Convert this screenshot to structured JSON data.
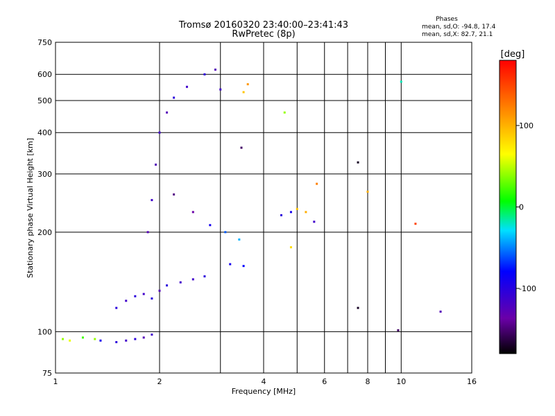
{
  "chart_data": {
    "type": "scatter",
    "title": "Tromsø 20160320 23:40:00–23:41:43",
    "subtitle": "RwPretec (8p)",
    "phase_stats": {
      "title": "Phases",
      "line_o": "mean, sd,O: -94.8, 17.4",
      "line_x": "mean, sd,X:  82.7, 21.1"
    },
    "xlabel": "Frequency [MHz]",
    "ylabel": "Stationary phase Virtual Height [km]",
    "xscale": "log",
    "yscale": "log",
    "xlim": [
      1,
      16
    ],
    "ylim": [
      75,
      750
    ],
    "xticks": [
      1,
      2,
      4,
      6,
      8,
      10,
      16
    ],
    "yticks": [
      75,
      100,
      200,
      300,
      400,
      500,
      600,
      750
    ],
    "xminor": [
      3,
      5,
      7,
      9
    ],
    "grid": true,
    "colorbar": {
      "label": "[deg]",
      "range": [
        -180,
        180
      ],
      "ticks": [
        100,
        0,
        -100
      ]
    },
    "series": [
      {
        "values": [
          {
            "x": 1.05,
            "y": 95,
            "p": 40
          },
          {
            "x": 1.1,
            "y": 94,
            "p": 60
          },
          {
            "x": 1.2,
            "y": 96,
            "p": 20
          },
          {
            "x": 1.3,
            "y": 95,
            "p": 40
          },
          {
            "x": 1.35,
            "y": 94,
            "p": -90
          },
          {
            "x": 1.5,
            "y": 93,
            "p": -100
          },
          {
            "x": 1.6,
            "y": 94,
            "p": -110
          },
          {
            "x": 1.7,
            "y": 95,
            "p": -100
          },
          {
            "x": 1.8,
            "y": 96,
            "p": -120
          },
          {
            "x": 1.9,
            "y": 98,
            "p": -110
          },
          {
            "x": 1.5,
            "y": 118,
            "p": -100
          },
          {
            "x": 1.6,
            "y": 124,
            "p": -110
          },
          {
            "x": 1.7,
            "y": 128,
            "p": -100
          },
          {
            "x": 1.8,
            "y": 130,
            "p": -110
          },
          {
            "x": 1.9,
            "y": 126,
            "p": -100
          },
          {
            "x": 2.0,
            "y": 133,
            "p": -120
          },
          {
            "x": 2.1,
            "y": 138,
            "p": -100
          },
          {
            "x": 2.3,
            "y": 141,
            "p": -110
          },
          {
            "x": 2.5,
            "y": 144,
            "p": -110
          },
          {
            "x": 2.7,
            "y": 147,
            "p": -100
          },
          {
            "x": 1.85,
            "y": 200,
            "p": -120
          },
          {
            "x": 1.9,
            "y": 250,
            "p": -110
          },
          {
            "x": 1.95,
            "y": 320,
            "p": -120
          },
          {
            "x": 2.0,
            "y": 400,
            "p": -110
          },
          {
            "x": 2.1,
            "y": 460,
            "p": -120
          },
          {
            "x": 2.2,
            "y": 510,
            "p": -100
          },
          {
            "x": 2.4,
            "y": 550,
            "p": -110
          },
          {
            "x": 2.7,
            "y": 600,
            "p": -100
          },
          {
            "x": 2.9,
            "y": 620,
            "p": -120
          },
          {
            "x": 3.0,
            "y": 540,
            "p": -110
          },
          {
            "x": 2.2,
            "y": 260,
            "p": -140
          },
          {
            "x": 2.5,
            "y": 230,
            "p": -130
          },
          {
            "x": 2.8,
            "y": 210,
            "p": -90
          },
          {
            "x": 3.1,
            "y": 200,
            "p": -60
          },
          {
            "x": 3.4,
            "y": 190,
            "p": -40
          },
          {
            "x": 3.2,
            "y": 160,
            "p": -90
          },
          {
            "x": 3.5,
            "y": 158,
            "p": -80
          },
          {
            "x": 3.5,
            "y": 530,
            "p": 90
          },
          {
            "x": 3.6,
            "y": 560,
            "p": 110
          },
          {
            "x": 3.45,
            "y": 360,
            "p": -150
          },
          {
            "x": 4.6,
            "y": 460,
            "p": 40
          },
          {
            "x": 4.5,
            "y": 225,
            "p": -100
          },
          {
            "x": 4.8,
            "y": 230,
            "p": -90
          },
          {
            "x": 5.0,
            "y": 235,
            "p": 90
          },
          {
            "x": 5.3,
            "y": 230,
            "p": 100
          },
          {
            "x": 5.6,
            "y": 215,
            "p": -110
          },
          {
            "x": 5.7,
            "y": 280,
            "p": 120
          },
          {
            "x": 4.8,
            "y": 180,
            "p": 80
          },
          {
            "x": 7.5,
            "y": 325,
            "p": -170
          },
          {
            "x": 8.0,
            "y": 265,
            "p": 100
          },
          {
            "x": 10.0,
            "y": 570,
            "p": -20
          },
          {
            "x": 11.0,
            "y": 212,
            "p": 150
          },
          {
            "x": 13.0,
            "y": 115,
            "p": -120
          },
          {
            "x": 7.5,
            "y": 118,
            "p": -170
          },
          {
            "x": 9.8,
            "y": 101,
            "p": -150
          }
        ]
      }
    ]
  }
}
